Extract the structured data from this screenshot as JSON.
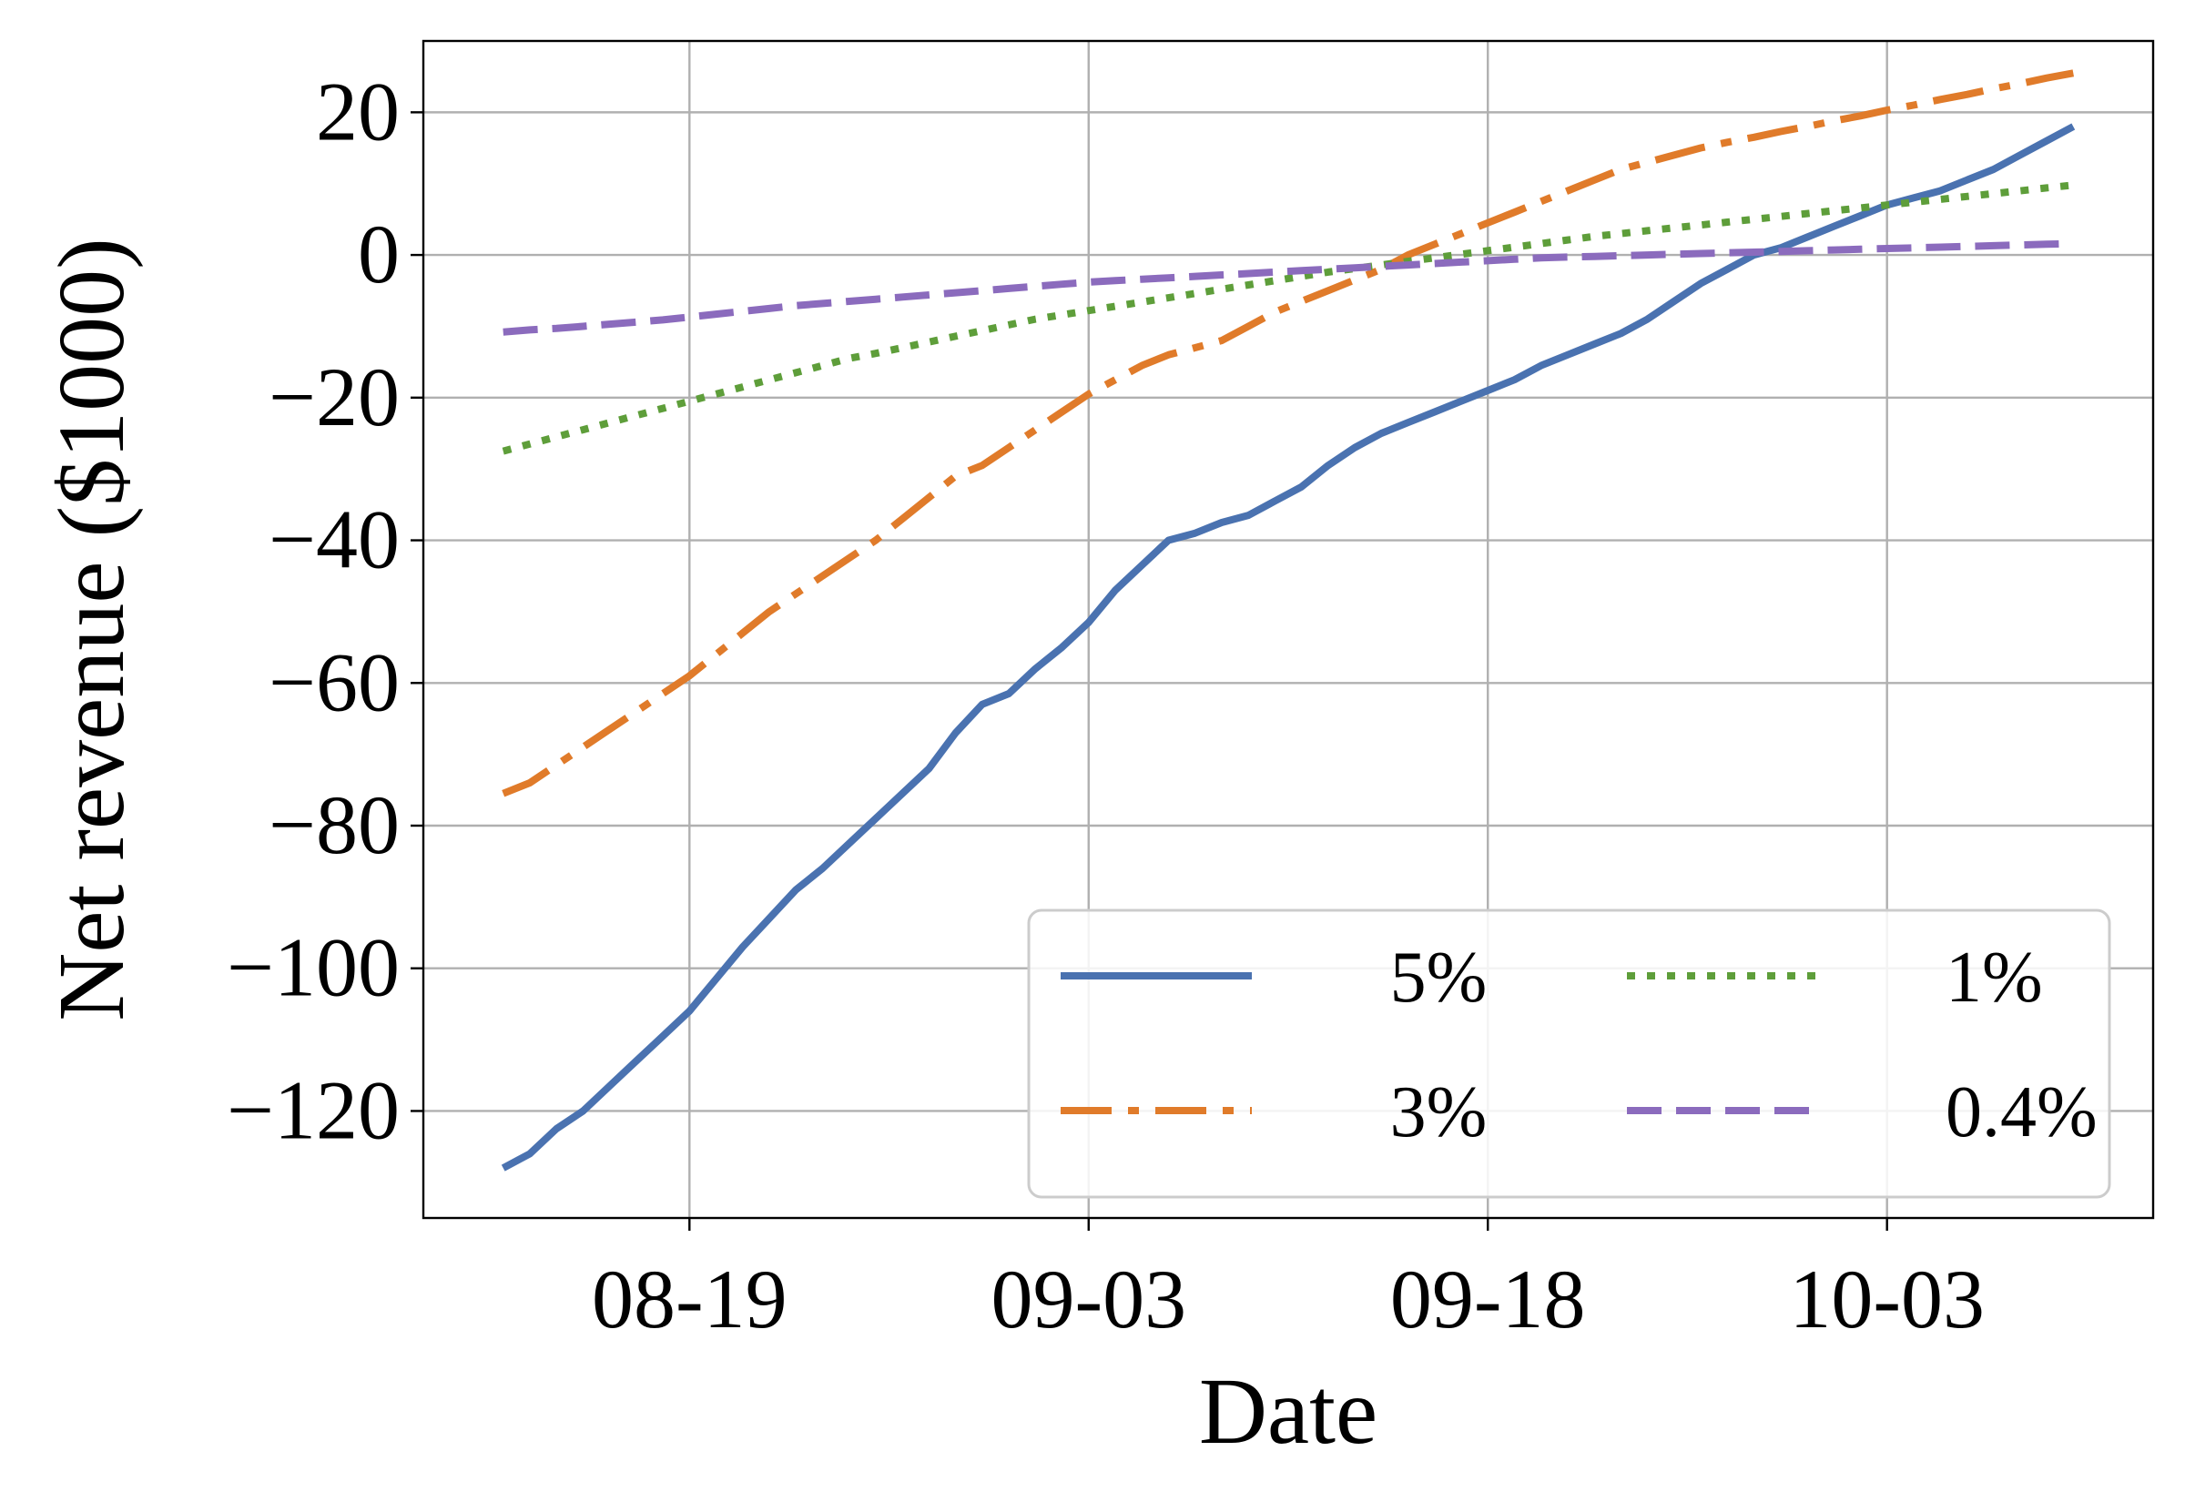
{
  "chart_data": {
    "type": "line",
    "xlabel": "Date",
    "ylabel": "Net revenue ($1000)",
    "x_ticks": [
      "08-19",
      "09-03",
      "09-18",
      "10-03"
    ],
    "y_ticks": [
      20,
      0,
      -20,
      -40,
      -60,
      -80,
      -100,
      -120
    ],
    "y_tick_labels": [
      "20",
      "0",
      "−20",
      "−40",
      "−60",
      "−80",
      "−100",
      "−120"
    ],
    "xlim": [
      "2023-08-09",
      "2023-10-13"
    ],
    "ylim": [
      -135,
      30
    ],
    "grid": true,
    "legend_position": "lower-right",
    "legend_columns": 2,
    "x_dates": [
      "2023-08-12",
      "2023-08-13",
      "2023-08-14",
      "2023-08-15",
      "2023-08-16",
      "2023-08-17",
      "2023-08-18",
      "2023-08-19",
      "2023-08-20",
      "2023-08-21",
      "2023-08-22",
      "2023-08-23",
      "2023-08-24",
      "2023-08-25",
      "2023-08-26",
      "2023-08-27",
      "2023-08-28",
      "2023-08-29",
      "2023-08-30",
      "2023-08-31",
      "2023-09-01",
      "2023-09-02",
      "2023-09-03",
      "2023-09-04",
      "2023-09-05",
      "2023-09-06",
      "2023-09-07",
      "2023-09-08",
      "2023-09-09",
      "2023-09-10",
      "2023-09-11",
      "2023-09-12",
      "2023-09-13",
      "2023-09-14",
      "2023-09-15",
      "2023-09-16",
      "2023-09-17",
      "2023-09-18",
      "2023-09-19",
      "2023-09-20",
      "2023-09-21",
      "2023-09-22",
      "2023-09-23",
      "2023-09-24",
      "2023-09-25",
      "2023-09-26",
      "2023-09-27",
      "2023-09-28",
      "2023-09-29",
      "2023-09-30",
      "2023-10-01",
      "2023-10-02",
      "2023-10-03",
      "2023-10-04",
      "2023-10-05",
      "2023-10-06",
      "2023-10-07",
      "2023-10-08",
      "2023-10-09",
      "2023-10-10"
    ],
    "series": [
      {
        "name": "5%",
        "color": "#4a72b0",
        "dash": "solid",
        "values": [
          -128,
          -126,
          -122.5,
          -120,
          -116.5,
          -113,
          -109.5,
          -106,
          -101.5,
          -97,
          -93,
          -89,
          -86,
          -82.5,
          -79,
          -75.5,
          -72,
          -67,
          -63,
          -61.5,
          -58,
          -55,
          -51.5,
          -47,
          -43.5,
          -40,
          -39,
          -37.5,
          -36.5,
          -34.5,
          -32.5,
          -29.5,
          -27,
          -25,
          -23.5,
          -22,
          -20.5,
          -19,
          -17.5,
          -15.5,
          -14,
          -12.5,
          -11,
          -9,
          -6.5,
          -4,
          -2,
          0,
          1,
          2.5,
          4,
          5.5,
          7,
          8,
          9,
          10.5,
          12,
          14,
          16,
          18
        ]
      },
      {
        "name": "3%",
        "color": "#e07b2a",
        "dash": "dashdot",
        "values": [
          -75.5,
          -74,
          -71.5,
          -69,
          -66.5,
          -64,
          -61.5,
          -59,
          -56,
          -53,
          -50,
          -47.5,
          -45,
          -42.5,
          -40,
          -37,
          -34,
          -31,
          -29.5,
          -27,
          -24.5,
          -22,
          -19.5,
          -17.5,
          -15.5,
          -14,
          -13,
          -12,
          -10,
          -8,
          -6.5,
          -5,
          -3.5,
          -2,
          0,
          1.5,
          3,
          4.5,
          6,
          7.5,
          9,
          10.5,
          12,
          13,
          14,
          15,
          15.8,
          16.5,
          17.3,
          18,
          18.8,
          19.5,
          20.3,
          21,
          21.8,
          22.5,
          23.3,
          24,
          24.8,
          25.5
        ]
      },
      {
        "name": "1%",
        "color": "#5e9e3a",
        "dash": "dotted",
        "values": [
          -27.5,
          -26.5,
          -25.5,
          -24.5,
          -23.5,
          -22.5,
          -21.5,
          -20.5,
          -19.5,
          -18.5,
          -17.5,
          -16.5,
          -15.5,
          -14.5,
          -13.8,
          -13,
          -12.2,
          -11.4,
          -10.6,
          -9.8,
          -9,
          -8.4,
          -7.8,
          -7.2,
          -6.6,
          -6,
          -5.4,
          -4.8,
          -4.2,
          -3.6,
          -3,
          -2.4,
          -1.9,
          -1.4,
          -0.9,
          -0.4,
          0.1,
          0.6,
          1.1,
          1.6,
          2.1,
          2.6,
          3,
          3.4,
          3.8,
          4.2,
          4.6,
          5,
          5.4,
          5.8,
          6.2,
          6.6,
          7,
          7.4,
          7.8,
          8.2,
          8.6,
          9,
          9.4,
          9.8
        ]
      },
      {
        "name": "0.4%",
        "color": "#8b6bbd",
        "dash": "dashed",
        "values": [
          -10.8,
          -10.5,
          -10.3,
          -10,
          -9.7,
          -9.4,
          -9.1,
          -8.7,
          -8.3,
          -7.9,
          -7.5,
          -7.1,
          -6.8,
          -6.5,
          -6.2,
          -5.9,
          -5.6,
          -5.3,
          -5,
          -4.7,
          -4.4,
          -4.1,
          -3.8,
          -3.6,
          -3.4,
          -3.2,
          -3,
          -2.8,
          -2.6,
          -2.4,
          -2.2,
          -2,
          -1.8,
          -1.6,
          -1.4,
          -1.2,
          -1,
          -0.8,
          -0.6,
          -0.4,
          -0.3,
          -0.2,
          -0.1,
          0,
          0.1,
          0.2,
          0.3,
          0.4,
          0.5,
          0.6,
          0.7,
          0.8,
          0.9,
          1,
          1.1,
          1.2,
          1.3,
          1.4,
          1.5,
          1.6
        ]
      }
    ]
  }
}
